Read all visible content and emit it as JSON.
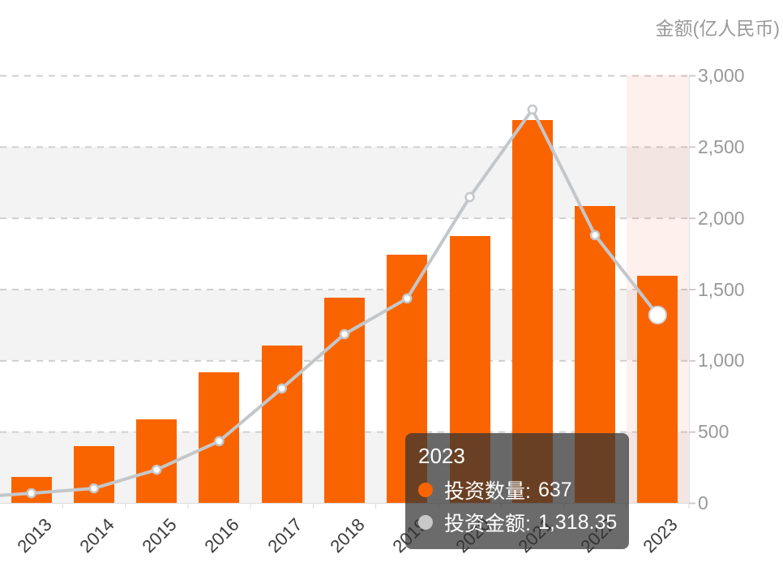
{
  "axis_title": "金额(亿人民币)",
  "chart_data": {
    "type": "bar+line combo",
    "categories": [
      "2013",
      "2014",
      "2015",
      "2016",
      "2017",
      "2018",
      "2019",
      "2020",
      "2021",
      "2022",
      "2023"
    ],
    "series": [
      {
        "name": "投资数量",
        "type": "bar",
        "color": "#fa6400",
        "values": [
          73,
          159,
          235,
          367,
          442,
          576,
          697,
          749,
          1075,
          833,
          637
        ]
      },
      {
        "name": "投资金额",
        "type": "line",
        "color": "#c4c7ca",
        "values": [
          68,
          102,
          233,
          433,
          803,
          1184,
          1435,
          2146,
          2761,
          1879,
          1318.35
        ]
      }
    ],
    "right_axis": {
      "title": "金额(亿人民币)",
      "tick_labels": [
        "3,000",
        "2,500",
        "2,000",
        "1,500",
        "1,000",
        "500",
        "0"
      ],
      "tick_values": [
        3000,
        2500,
        2000,
        1500,
        1000,
        500,
        0
      ],
      "min": 0,
      "max": 3000
    },
    "highlighted_category": "2023",
    "grid": {
      "horizontal_dashed_lines": true,
      "alternating_shaded_bands": true
    },
    "legend_position": "none"
  },
  "tooltip": {
    "title": "2023",
    "rows": [
      {
        "label": "投资数量:",
        "value": "637",
        "marker_color": "#fa6400"
      },
      {
        "label": "投资金额:",
        "value": "1,318.35",
        "marker_color": "#c8c8c8"
      }
    ]
  }
}
